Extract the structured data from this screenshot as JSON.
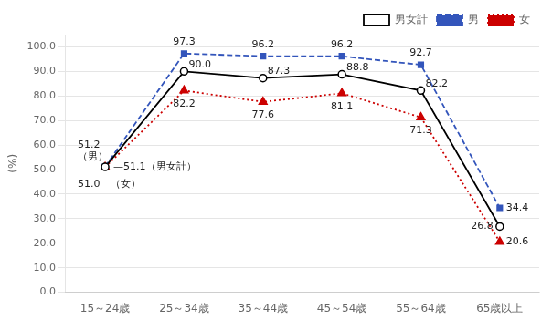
{
  "chart_data": {
    "type": "line",
    "categories": [
      "15～24歳",
      "25～34歳",
      "35～44歳",
      "45～54歳",
      "55～64歳",
      "65歳以上"
    ],
    "series": [
      {
        "name": "男女計",
        "color": "#000000",
        "marker": "circle",
        "line_style": "solid",
        "values": [
          51.1,
          90.0,
          87.3,
          88.8,
          82.2,
          26.8
        ],
        "value_labels": [
          null,
          "90.0",
          "87.3",
          "88.8",
          "82.2",
          "26.8"
        ]
      },
      {
        "name": "男",
        "color": "#3355bb",
        "marker": "square",
        "line_style": "dashed",
        "values": [
          51.2,
          97.3,
          96.2,
          96.2,
          92.7,
          34.4
        ],
        "value_labels": [
          null,
          "97.3",
          "96.2",
          "96.2",
          "92.7",
          "34.4"
        ]
      },
      {
        "name": "女",
        "color": "#cc0000",
        "marker": "triangle",
        "line_style": "dotted",
        "values": [
          51.0,
          82.2,
          77.6,
          81.1,
          71.3,
          20.6
        ],
        "value_labels": [
          null,
          "82.2",
          "77.6",
          "81.1",
          "71.3",
          "20.6"
        ]
      }
    ],
    "annotations": [
      {
        "text": "51.2",
        "x": "15～24歳",
        "series": "男"
      },
      {
        "text": "（男）",
        "x": "15～24歳",
        "series": "男"
      },
      {
        "text": "—51.1（男女計）",
        "x": "15～24歳",
        "series": "男女計"
      },
      {
        "text": "51.0　（女）",
        "x": "15～24歳",
        "series": "女"
      }
    ],
    "data_labels": true,
    "ylabel": "(%)",
    "ylim": [
      0,
      105
    ],
    "yticks": [
      {
        "value": 0,
        "label": "0.0"
      },
      {
        "value": 10,
        "label": "10.0"
      },
      {
        "value": 20,
        "label": "20.0"
      },
      {
        "value": 30,
        "label": "30.0"
      },
      {
        "value": 40,
        "label": "40.0"
      },
      {
        "value": 50,
        "label": "50.0"
      },
      {
        "value": 60,
        "label": "60.0"
      },
      {
        "value": 70,
        "label": "70.0"
      },
      {
        "value": 80,
        "label": "80.0"
      },
      {
        "value": 90,
        "label": "90.0"
      },
      {
        "value": 100,
        "label": "100.0"
      }
    ],
    "grid": true,
    "legend": "upper right"
  }
}
